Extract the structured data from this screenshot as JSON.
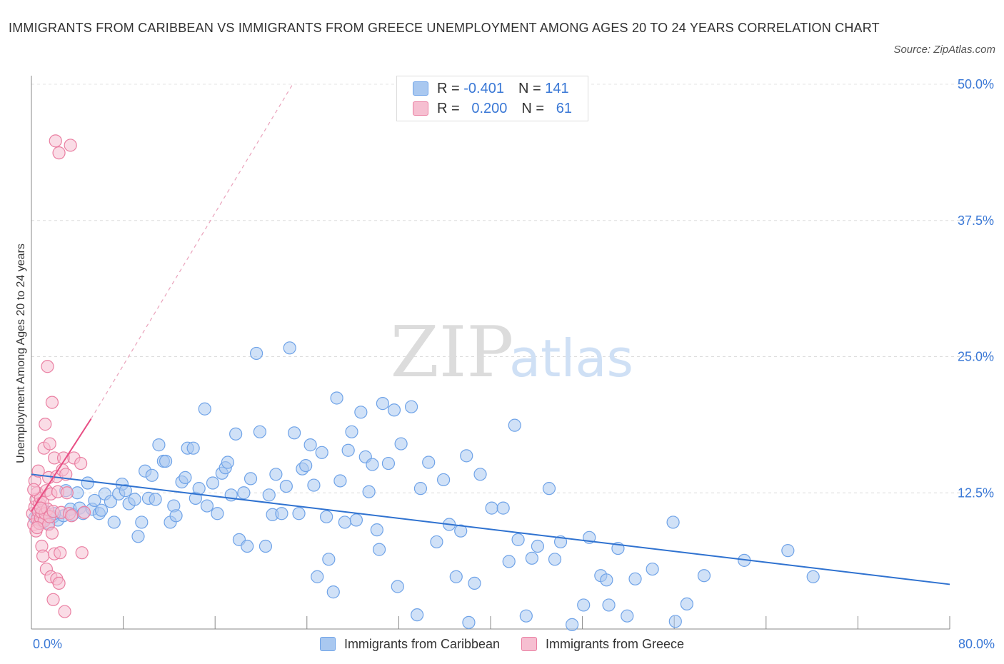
{
  "chart_data": {
    "type": "scatter",
    "title": "IMMIGRANTS FROM CARIBBEAN VS IMMIGRANTS FROM GREECE UNEMPLOYMENT AMONG AGES 20 TO 24 YEARS CORRELATION CHART",
    "source": "Source: ZipAtlas.com",
    "watermark": {
      "zip": "ZIP",
      "atlas": "atlas"
    },
    "xlabel": "",
    "ylabel": "Unemployment Among Ages 20 to 24 years",
    "xlim": [
      0,
      80
    ],
    "ylim": [
      0,
      50
    ],
    "x_tick_labels": {
      "left": "0.0%",
      "right": "80.0%"
    },
    "y_ticks": [
      {
        "value": 12.5,
        "label": "12.5%"
      },
      {
        "value": 25,
        "label": "25.0%"
      },
      {
        "value": 37.5,
        "label": "37.5%"
      },
      {
        "value": 50,
        "label": "50.0%"
      }
    ],
    "grid": true,
    "legend_stats": [
      {
        "r_label": "R =",
        "r_value": "-0.401",
        "n_label": "N =",
        "n_value": "141"
      },
      {
        "r_label": "R =",
        "r_value": "0.200",
        "n_label": "N =",
        "n_value": "61"
      }
    ],
    "series": [
      {
        "name": "Immigrants from Caribbean",
        "color": "#6fa3e8",
        "fill": "#a9c8f0",
        "line_color": "#2f72d0",
        "trend": {
          "x": [
            0,
            80
          ],
          "y": [
            14.2,
            4.1
          ]
        },
        "points": [
          [
            0.6,
            10.5
          ],
          [
            0.9,
            9.8
          ],
          [
            1.2,
            10.1
          ],
          [
            1.5,
            9.7
          ],
          [
            1.9,
            10.3
          ],
          [
            2.3,
            10.0
          ],
          [
            2.8,
            10.4
          ],
          [
            3.0,
            12.7
          ],
          [
            3.4,
            11.0
          ],
          [
            3.6,
            10.5
          ],
          [
            4.0,
            12.5
          ],
          [
            4.2,
            11.1
          ],
          [
            4.5,
            10.6
          ],
          [
            4.9,
            13.4
          ],
          [
            5.3,
            11.0
          ],
          [
            5.5,
            11.8
          ],
          [
            5.9,
            10.6
          ],
          [
            6.1,
            10.9
          ],
          [
            6.4,
            12.4
          ],
          [
            6.9,
            11.7
          ],
          [
            7.2,
            9.8
          ],
          [
            7.6,
            12.4
          ],
          [
            7.9,
            13.3
          ],
          [
            8.2,
            12.7
          ],
          [
            8.5,
            11.5
          ],
          [
            9.0,
            11.9
          ],
          [
            9.3,
            8.5
          ],
          [
            9.6,
            9.8
          ],
          [
            9.9,
            14.5
          ],
          [
            10.2,
            12.0
          ],
          [
            10.5,
            14.1
          ],
          [
            10.8,
            11.9
          ],
          [
            11.1,
            16.9
          ],
          [
            11.5,
            15.4
          ],
          [
            11.7,
            15.4
          ],
          [
            12.1,
            9.8
          ],
          [
            12.4,
            11.3
          ],
          [
            12.6,
            10.4
          ],
          [
            13.1,
            13.5
          ],
          [
            13.4,
            13.9
          ],
          [
            13.6,
            16.6
          ],
          [
            14.1,
            16.6
          ],
          [
            14.3,
            12.0
          ],
          [
            14.6,
            12.9
          ],
          [
            15.1,
            20.2
          ],
          [
            15.3,
            11.3
          ],
          [
            15.8,
            13.4
          ],
          [
            16.2,
            10.6
          ],
          [
            16.6,
            14.3
          ],
          [
            16.9,
            14.8
          ],
          [
            17.1,
            15.3
          ],
          [
            17.4,
            12.3
          ],
          [
            17.8,
            17.9
          ],
          [
            18.1,
            8.2
          ],
          [
            18.5,
            12.5
          ],
          [
            18.8,
            7.6
          ],
          [
            19.1,
            13.8
          ],
          [
            19.6,
            25.3
          ],
          [
            19.9,
            18.1
          ],
          [
            20.4,
            7.6
          ],
          [
            20.7,
            12.3
          ],
          [
            21.0,
            10.5
          ],
          [
            21.3,
            14.2
          ],
          [
            21.8,
            10.6
          ],
          [
            22.2,
            13.1
          ],
          [
            22.5,
            25.8
          ],
          [
            22.9,
            18.0
          ],
          [
            23.3,
            10.6
          ],
          [
            23.6,
            14.7
          ],
          [
            23.9,
            15.0
          ],
          [
            24.3,
            16.9
          ],
          [
            24.6,
            13.2
          ],
          [
            24.9,
            4.8
          ],
          [
            25.3,
            16.2
          ],
          [
            25.7,
            10.3
          ],
          [
            25.9,
            6.4
          ],
          [
            26.3,
            3.4
          ],
          [
            26.6,
            21.2
          ],
          [
            26.9,
            13.6
          ],
          [
            27.3,
            9.8
          ],
          [
            27.6,
            16.4
          ],
          [
            27.9,
            18.1
          ],
          [
            28.3,
            10.0
          ],
          [
            28.7,
            19.9
          ],
          [
            29.1,
            15.8
          ],
          [
            29.4,
            12.6
          ],
          [
            29.7,
            15.1
          ],
          [
            30.1,
            9.1
          ],
          [
            30.3,
            7.3
          ],
          [
            30.6,
            20.7
          ],
          [
            31.1,
            15.2
          ],
          [
            31.6,
            20.1
          ],
          [
            31.9,
            3.9
          ],
          [
            32.2,
            17.0
          ],
          [
            33.1,
            20.4
          ],
          [
            33.6,
            1.3
          ],
          [
            33.9,
            12.9
          ],
          [
            34.6,
            15.3
          ],
          [
            35.3,
            8.0
          ],
          [
            35.9,
            13.7
          ],
          [
            36.4,
            9.6
          ],
          [
            37.0,
            4.8
          ],
          [
            37.4,
            9.0
          ],
          [
            37.9,
            15.9
          ],
          [
            38.1,
            0.6
          ],
          [
            38.6,
            4.2
          ],
          [
            39.1,
            14.2
          ],
          [
            40.1,
            11.1
          ],
          [
            41.1,
            11.1
          ],
          [
            41.6,
            6.2
          ],
          [
            42.1,
            18.7
          ],
          [
            42.4,
            8.2
          ],
          [
            43.1,
            1.2
          ],
          [
            43.6,
            6.5
          ],
          [
            44.1,
            7.6
          ],
          [
            45.1,
            12.9
          ],
          [
            45.6,
            6.4
          ],
          [
            46.1,
            8.0
          ],
          [
            47.1,
            0.4
          ],
          [
            48.1,
            2.2
          ],
          [
            48.6,
            8.4
          ],
          [
            49.6,
            4.9
          ],
          [
            50.1,
            4.5
          ],
          [
            50.3,
            2.2
          ],
          [
            51.1,
            7.4
          ],
          [
            51.9,
            1.2
          ],
          [
            52.6,
            4.6
          ],
          [
            54.1,
            5.5
          ],
          [
            55.9,
            9.8
          ],
          [
            56.1,
            0.7
          ],
          [
            57.1,
            2.3
          ],
          [
            58.6,
            4.9
          ],
          [
            62.1,
            6.3
          ],
          [
            65.9,
            7.2
          ],
          [
            68.1,
            4.8
          ],
          [
            0.3,
            10.2
          ],
          [
            1.1,
            10.9
          ],
          [
            2.0,
            10.6
          ]
        ]
      },
      {
        "name": "Immigrants from Greece",
        "color": "#ea7fa2",
        "fill": "#f6bfd1",
        "line_color": "#e84e84",
        "trend": {
          "x": [
            0,
            5.2
          ],
          "y": [
            10.8,
            19.3
          ]
        },
        "trend_extension": {
          "x": [
            5.2,
            22.7
          ],
          "y": [
            19.3,
            49.9
          ]
        },
        "points": [
          [
            0.1,
            10.6
          ],
          [
            0.2,
            9.6
          ],
          [
            0.3,
            11.2
          ],
          [
            0.3,
            13.6
          ],
          [
            0.4,
            9.0
          ],
          [
            0.4,
            11.9
          ],
          [
            0.5,
            10.1
          ],
          [
            0.5,
            12.5
          ],
          [
            0.6,
            10.8
          ],
          [
            0.6,
            14.5
          ],
          [
            0.7,
            9.7
          ],
          [
            0.7,
            11.5
          ],
          [
            0.8,
            10.2
          ],
          [
            0.8,
            12.0
          ],
          [
            0.9,
            10.7
          ],
          [
            0.9,
            7.6
          ],
          [
            1.0,
            11.6
          ],
          [
            1.0,
            6.7
          ],
          [
            1.1,
            9.9
          ],
          [
            1.1,
            16.6
          ],
          [
            1.2,
            10.6
          ],
          [
            1.2,
            18.8
          ],
          [
            1.3,
            12.7
          ],
          [
            1.3,
            5.5
          ],
          [
            1.4,
            11.0
          ],
          [
            1.4,
            24.1
          ],
          [
            1.5,
            9.6
          ],
          [
            1.5,
            13.9
          ],
          [
            1.6,
            10.3
          ],
          [
            1.6,
            17.0
          ],
          [
            1.7,
            12.4
          ],
          [
            1.7,
            4.8
          ],
          [
            1.8,
            20.8
          ],
          [
            1.8,
            8.8
          ],
          [
            1.9,
            10.8
          ],
          [
            1.9,
            2.7
          ],
          [
            2.0,
            15.7
          ],
          [
            2.0,
            6.9
          ],
          [
            2.1,
            44.8
          ],
          [
            2.2,
            14.0
          ],
          [
            2.2,
            4.6
          ],
          [
            2.3,
            12.6
          ],
          [
            2.4,
            43.7
          ],
          [
            2.4,
            4.2
          ],
          [
            2.5,
            7.0
          ],
          [
            2.6,
            10.7
          ],
          [
            2.7,
            14.6
          ],
          [
            2.8,
            15.7
          ],
          [
            2.9,
            1.6
          ],
          [
            3.0,
            14.2
          ],
          [
            3.1,
            12.5
          ],
          [
            3.3,
            10.6
          ],
          [
            3.4,
            44.4
          ],
          [
            3.5,
            10.4
          ],
          [
            3.7,
            15.7
          ],
          [
            4.3,
            15.2
          ],
          [
            4.4,
            7.0
          ],
          [
            4.6,
            10.7
          ],
          [
            0.2,
            12.8
          ],
          [
            0.5,
            9.3
          ],
          [
            0.8,
            11.1
          ]
        ]
      }
    ]
  }
}
